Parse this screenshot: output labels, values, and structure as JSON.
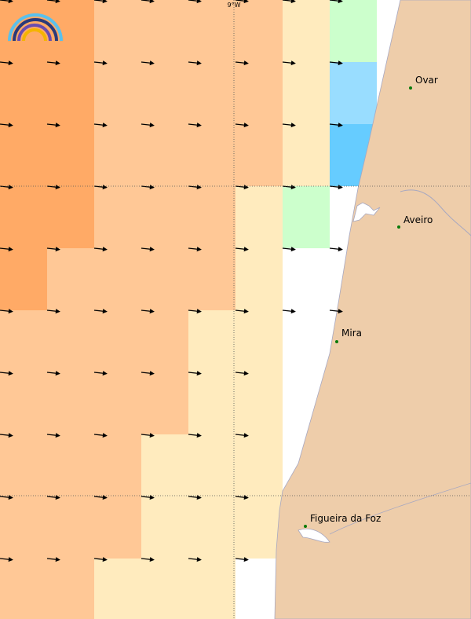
{
  "map": {
    "meridian_label": "9°W",
    "cities": [
      {
        "name": "Ovar"
      },
      {
        "name": "Aveiro"
      },
      {
        "name": "Mira"
      },
      {
        "name": "Figueira da Foz"
      }
    ]
  }
}
